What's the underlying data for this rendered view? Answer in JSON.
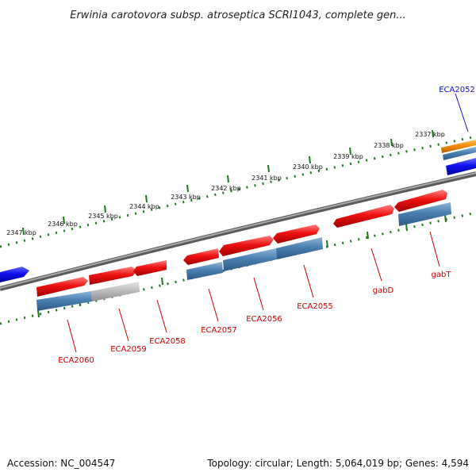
{
  "title": "Erwinia carotovora subsp. atroseptica SCRI1043, complete gen...",
  "footer": {
    "accession": "Accession: NC_004547",
    "summary": "Topology: circular; Length: 5,064,019 bp; Genes: 4,594"
  },
  "colors": {
    "backbone": "#7a7a7a",
    "tick": "#1f7a1f",
    "gene_forward": "#ee1111",
    "gene_cds_blue": "#4a7fb0",
    "gene_cds_grey": "#b8b8b8",
    "gene_other_strand": "#1010ee",
    "gene_orange": "#f08a00",
    "label_red": "#cc0000",
    "label_blue": "#1010cc"
  },
  "ticks": [
    "2337 kbp",
    "2338 kbp",
    "2339 kbp",
    "2340 kbp",
    "2341 kbp",
    "2342 kbp",
    "2343 kbp",
    "2344 kbp",
    "2345 kbp",
    "2346 kbp",
    "2347 kbp"
  ],
  "genes": [
    {
      "label": "ECA2052",
      "color": "label_blue"
    },
    {
      "label": "gabT",
      "color": "label_red"
    },
    {
      "label": "gabD",
      "color": "label_red"
    },
    {
      "label": "ECA2055",
      "color": "label_red"
    },
    {
      "label": "ECA2056",
      "color": "label_red"
    },
    {
      "label": "ECA2057",
      "color": "label_red"
    },
    {
      "label": "ECA2058",
      "color": "label_red"
    },
    {
      "label": "ECA2059",
      "color": "label_red"
    },
    {
      "label": "ECA2060",
      "color": "label_red"
    }
  ]
}
